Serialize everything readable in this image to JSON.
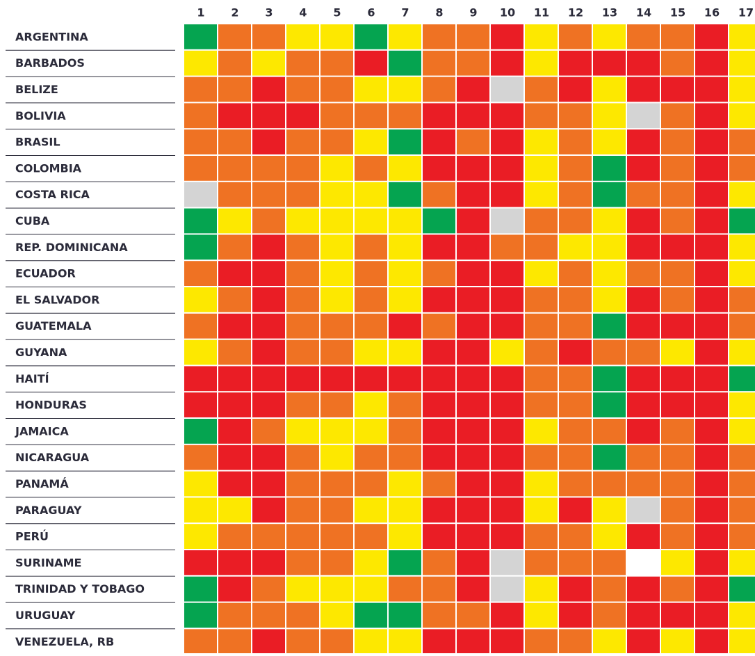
{
  "chart_data": {
    "type": "heatmap",
    "columns": [
      "1",
      "2",
      "3",
      "4",
      "5",
      "6",
      "7",
      "8",
      "9",
      "10",
      "11",
      "12",
      "13",
      "14",
      "15",
      "16",
      "17"
    ],
    "rows": [
      "ARGENTINA",
      "BARBADOS",
      "BELIZE",
      "BOLIVIA",
      "BRASIL",
      "COLOMBIA",
      "COSTA RICA",
      "CUBA",
      "REP. DOMINICANA",
      "ECUADOR",
      "EL SALVADOR",
      "GUATEMALA",
      "GUYANA",
      "HAITÍ",
      "HONDURAS",
      "JAMAICA",
      "NICARAGUA",
      "PANAMÁ",
      "PARAGUAY",
      "PERÚ",
      "SURINAME",
      "TRINIDAD Y TOBAGO",
      "URUGUAY",
      "VENEZUELA, RB"
    ],
    "cells": [
      [
        "#05a450",
        "#ef7223",
        "#ef7223",
        "#fde800",
        "#fde800",
        "#05a450",
        "#fde800",
        "#ef7223",
        "#ef7223",
        "#ea1d25",
        "#fde800",
        "#ef7223",
        "#fde800",
        "#ef7223",
        "#ef7223",
        "#ea1d25",
        "#fde800"
      ],
      [
        "#fde800",
        "#ef7223",
        "#fde800",
        "#ef7223",
        "#ef7223",
        "#ea1d25",
        "#05a450",
        "#ef7223",
        "#ef7223",
        "#ea1d25",
        "#fde800",
        "#ea1d25",
        "#ea1d25",
        "#ea1d25",
        "#ef7223",
        "#ea1d25",
        "#fde800"
      ],
      [
        "#ef7223",
        "#ef7223",
        "#ea1d25",
        "#ef7223",
        "#ef7223",
        "#fde800",
        "#fde800",
        "#ef7223",
        "#ea1d25",
        "#d4d4d4",
        "#ef7223",
        "#ea1d25",
        "#fde800",
        "#ea1d25",
        "#ea1d25",
        "#ea1d25",
        "#fde800"
      ],
      [
        "#ef7223",
        "#ea1d25",
        "#ea1d25",
        "#ea1d25",
        "#ef7223",
        "#ef7223",
        "#ef7223",
        "#ea1d25",
        "#ea1d25",
        "#ea1d25",
        "#ef7223",
        "#ef7223",
        "#fde800",
        "#d4d4d4",
        "#ef7223",
        "#ea1d25",
        "#fde800"
      ],
      [
        "#ef7223",
        "#ef7223",
        "#ea1d25",
        "#ef7223",
        "#ef7223",
        "#fde800",
        "#05a450",
        "#ea1d25",
        "#ef7223",
        "#ea1d25",
        "#fde800",
        "#ef7223",
        "#fde800",
        "#ea1d25",
        "#ef7223",
        "#ea1d25",
        "#ef7223"
      ],
      [
        "#ef7223",
        "#ef7223",
        "#ef7223",
        "#ef7223",
        "#fde800",
        "#ef7223",
        "#fde800",
        "#ea1d25",
        "#ea1d25",
        "#ea1d25",
        "#fde800",
        "#ef7223",
        "#05a450",
        "#ea1d25",
        "#ef7223",
        "#ea1d25",
        "#ef7223"
      ],
      [
        "#d4d4d4",
        "#ef7223",
        "#ef7223",
        "#ef7223",
        "#fde800",
        "#fde800",
        "#05a450",
        "#ef7223",
        "#ea1d25",
        "#ea1d25",
        "#fde800",
        "#ef7223",
        "#05a450",
        "#ef7223",
        "#ef7223",
        "#ea1d25",
        "#fde800"
      ],
      [
        "#05a450",
        "#fde800",
        "#ef7223",
        "#fde800",
        "#fde800",
        "#fde800",
        "#fde800",
        "#05a450",
        "#ea1d25",
        "#d4d4d4",
        "#ef7223",
        "#ef7223",
        "#fde800",
        "#ea1d25",
        "#ef7223",
        "#ea1d25",
        "#05a450"
      ],
      [
        "#05a450",
        "#ef7223",
        "#ea1d25",
        "#ef7223",
        "#fde800",
        "#ef7223",
        "#fde800",
        "#ea1d25",
        "#ea1d25",
        "#ef7223",
        "#ef7223",
        "#fde800",
        "#fde800",
        "#ea1d25",
        "#ea1d25",
        "#ea1d25",
        "#fde800"
      ],
      [
        "#ef7223",
        "#ea1d25",
        "#ea1d25",
        "#ef7223",
        "#fde800",
        "#ef7223",
        "#fde800",
        "#ef7223",
        "#ea1d25",
        "#ea1d25",
        "#fde800",
        "#ef7223",
        "#fde800",
        "#ef7223",
        "#ef7223",
        "#ea1d25",
        "#fde800"
      ],
      [
        "#fde800",
        "#ef7223",
        "#ea1d25",
        "#ef7223",
        "#fde800",
        "#ef7223",
        "#fde800",
        "#ea1d25",
        "#ea1d25",
        "#ea1d25",
        "#ef7223",
        "#ef7223",
        "#fde800",
        "#ea1d25",
        "#ef7223",
        "#ea1d25",
        "#ef7223"
      ],
      [
        "#ef7223",
        "#ea1d25",
        "#ea1d25",
        "#ef7223",
        "#ef7223",
        "#ef7223",
        "#ea1d25",
        "#ef7223",
        "#ea1d25",
        "#ea1d25",
        "#ef7223",
        "#ef7223",
        "#05a450",
        "#ea1d25",
        "#ea1d25",
        "#ea1d25",
        "#ef7223"
      ],
      [
        "#fde800",
        "#ef7223",
        "#ea1d25",
        "#ef7223",
        "#ef7223",
        "#fde800",
        "#fde800",
        "#ea1d25",
        "#ea1d25",
        "#fde800",
        "#ef7223",
        "#ea1d25",
        "#ef7223",
        "#ef7223",
        "#fde800",
        "#ea1d25",
        "#fde800"
      ],
      [
        "#ea1d25",
        "#ea1d25",
        "#ea1d25",
        "#ea1d25",
        "#ea1d25",
        "#ea1d25",
        "#ea1d25",
        "#ea1d25",
        "#ea1d25",
        "#ea1d25",
        "#ef7223",
        "#ef7223",
        "#05a450",
        "#ea1d25",
        "#ea1d25",
        "#ea1d25",
        "#05a450"
      ],
      [
        "#ea1d25",
        "#ea1d25",
        "#ea1d25",
        "#ef7223",
        "#ef7223",
        "#fde800",
        "#ef7223",
        "#ea1d25",
        "#ea1d25",
        "#ea1d25",
        "#ef7223",
        "#ef7223",
        "#05a450",
        "#ea1d25",
        "#ea1d25",
        "#ea1d25",
        "#fde800"
      ],
      [
        "#05a450",
        "#ea1d25",
        "#ef7223",
        "#fde800",
        "#fde800",
        "#fde800",
        "#ef7223",
        "#ea1d25",
        "#ea1d25",
        "#ea1d25",
        "#fde800",
        "#ef7223",
        "#ef7223",
        "#ea1d25",
        "#ef7223",
        "#ea1d25",
        "#fde800"
      ],
      [
        "#ef7223",
        "#ea1d25",
        "#ea1d25",
        "#ef7223",
        "#fde800",
        "#ef7223",
        "#ef7223",
        "#ea1d25",
        "#ea1d25",
        "#ea1d25",
        "#ef7223",
        "#ef7223",
        "#05a450",
        "#ef7223",
        "#ef7223",
        "#ea1d25",
        "#ef7223"
      ],
      [
        "#fde800",
        "#ea1d25",
        "#ea1d25",
        "#ef7223",
        "#ef7223",
        "#ef7223",
        "#fde800",
        "#ef7223",
        "#ea1d25",
        "#ea1d25",
        "#fde800",
        "#ef7223",
        "#ef7223",
        "#ef7223",
        "#ef7223",
        "#ea1d25",
        "#ef7223"
      ],
      [
        "#fde800",
        "#fde800",
        "#ea1d25",
        "#ef7223",
        "#ef7223",
        "#fde800",
        "#fde800",
        "#ea1d25",
        "#ea1d25",
        "#ea1d25",
        "#fde800",
        "#ea1d25",
        "#fde800",
        "#d4d4d4",
        "#ef7223",
        "#ea1d25",
        "#ef7223"
      ],
      [
        "#fde800",
        "#ef7223",
        "#ef7223",
        "#ef7223",
        "#ef7223",
        "#ef7223",
        "#fde800",
        "#ea1d25",
        "#ea1d25",
        "#ea1d25",
        "#ef7223",
        "#ef7223",
        "#fde800",
        "#ea1d25",
        "#ef7223",
        "#ea1d25",
        "#ef7223"
      ],
      [
        "#ea1d25",
        "#ea1d25",
        "#ea1d25",
        "#ef7223",
        "#ef7223",
        "#fde800",
        "#05a450",
        "#ef7223",
        "#ea1d25",
        "#d4d4d4",
        "#ef7223",
        "#ef7223",
        "#ef7223",
        "#ffffff",
        "#fde800",
        "#ea1d25",
        "#fde800"
      ],
      [
        "#05a450",
        "#ea1d25",
        "#ef7223",
        "#fde800",
        "#fde800",
        "#fde800",
        "#ef7223",
        "#ef7223",
        "#ea1d25",
        "#d4d4d4",
        "#fde800",
        "#ea1d25",
        "#ef7223",
        "#ea1d25",
        "#ef7223",
        "#ea1d25",
        "#05a450"
      ],
      [
        "#05a450",
        "#ef7223",
        "#ef7223",
        "#ef7223",
        "#fde800",
        "#05a450",
        "#05a450",
        "#ef7223",
        "#ef7223",
        "#ea1d25",
        "#fde800",
        "#ea1d25",
        "#ef7223",
        "#ea1d25",
        "#ea1d25",
        "#ea1d25",
        "#fde800"
      ],
      [
        "#ef7223",
        "#ef7223",
        "#ea1d25",
        "#ef7223",
        "#ef7223",
        "#fde800",
        "#fde800",
        "#ea1d25",
        "#ea1d25",
        "#ea1d25",
        "#ef7223",
        "#ef7223",
        "#fde800",
        "#ea1d25",
        "#fde800",
        "#ea1d25",
        "#fde800"
      ]
    ]
  }
}
